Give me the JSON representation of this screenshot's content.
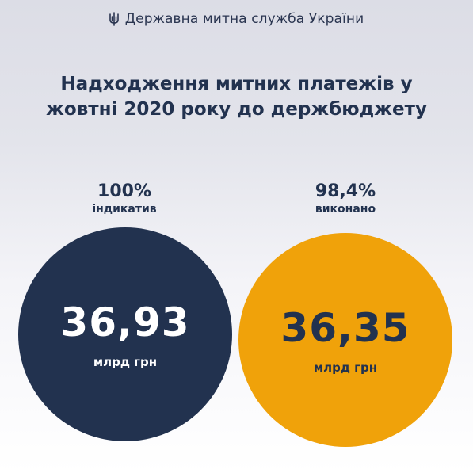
{
  "header": {
    "org_name": "Державна митна служба України",
    "logo_icon": "trident-icon"
  },
  "chart_data": {
    "type": "bubble",
    "title": "Надходження митних платежів у жовтні 2020 року до держбюджету",
    "unit": "млрд грн",
    "items": [
      {
        "name": "індикатив",
        "percent_label": "100%",
        "value": 36.93,
        "value_label": "36,93",
        "unit_label": "млрд грн",
        "color": "#22324f"
      },
      {
        "name": "виконано",
        "percent_label": "98,4%",
        "value": 36.35,
        "value_label": "36,35",
        "unit_label": "млрд грн",
        "color": "#f0a20a"
      }
    ]
  },
  "colors": {
    "navy": "#22324f",
    "orange": "#f0a20a",
    "background_top": "#dcdde6",
    "background_bottom": "#ffffff"
  }
}
